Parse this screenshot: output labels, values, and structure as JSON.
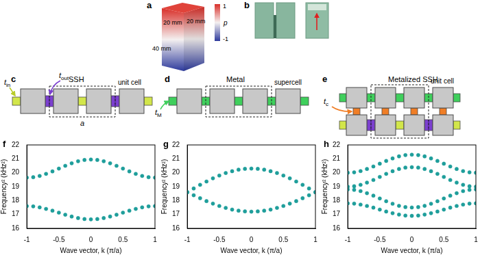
{
  "panels": {
    "a": {
      "label": "a",
      "dimensions": [
        "20 mm",
        "20 mm",
        "40 mm"
      ],
      "colorbar": {
        "label": "p",
        "range": [
          -1,
          1
        ],
        "ticks": [
          1,
          -1
        ]
      }
    },
    "b": {
      "label": "b"
    },
    "c": {
      "label": "c",
      "title": "SSH",
      "couplings": [
        {
          "symbol": "t",
          "subscript": "in"
        },
        {
          "symbol": "t",
          "subscript": "out"
        }
      ],
      "box_label": "unit cell",
      "lattice_constant": "a"
    },
    "d": {
      "label": "d",
      "title": "Metal",
      "couplings": [
        {
          "symbol": "t",
          "subscript": "M"
        }
      ],
      "box_label": "supercell"
    },
    "e": {
      "label": "e",
      "title": "Metalized SSH",
      "couplings": [
        {
          "symbol": "t",
          "subscript": "c"
        }
      ],
      "box_label": "unit cell"
    }
  },
  "chart_data": [
    {
      "panel": "f",
      "type": "scatter",
      "color": "#1f9e9b",
      "marker": "circle",
      "grid": false,
      "xlabel": "Wave vector, k (π/a)",
      "ylabel": "Frequency² (kHz²)",
      "xlim": [
        -1,
        1
      ],
      "xticks": [
        -1,
        -0.5,
        0,
        0.5,
        1
      ],
      "ylim": [
        16,
        22
      ],
      "yticks": [
        16,
        17,
        18,
        19,
        20,
        21,
        22
      ],
      "x": [
        -1,
        -0.9,
        -0.8,
        -0.7,
        -0.6,
        -0.5,
        -0.4,
        -0.3,
        -0.2,
        -0.1,
        0,
        0.1,
        0.2,
        0.3,
        0.4,
        0.5,
        0.6,
        0.7,
        0.8,
        0.9,
        1
      ],
      "series": [
        {
          "values": [
            17.6,
            17.58,
            17.51,
            17.4,
            17.27,
            17.13,
            16.98,
            16.85,
            16.74,
            16.67,
            16.65,
            16.67,
            16.74,
            16.85,
            16.98,
            17.13,
            17.27,
            17.4,
            17.51,
            17.58,
            17.6
          ]
        },
        {
          "values": [
            19.65,
            19.68,
            19.77,
            19.92,
            20.1,
            20.3,
            20.5,
            20.68,
            20.83,
            20.92,
            20.95,
            20.92,
            20.83,
            20.68,
            20.5,
            20.3,
            20.1,
            19.92,
            19.77,
            19.68,
            19.65
          ]
        }
      ]
    },
    {
      "panel": "g",
      "type": "scatter",
      "color": "#1f9e9b",
      "marker": "circle",
      "grid": false,
      "xlabel": "Wave vector, k (π/a)",
      "ylabel": "Frequency² (kHz²)",
      "xlim": [
        -1,
        1
      ],
      "xticks": [
        -1,
        -0.5,
        0,
        0.5,
        1
      ],
      "ylim": [
        16,
        22
      ],
      "yticks": [
        16,
        17,
        18,
        19,
        20,
        21,
        22
      ],
      "x": [
        -1,
        -0.9,
        -0.8,
        -0.7,
        -0.6,
        -0.5,
        -0.4,
        -0.3,
        -0.2,
        -0.1,
        0,
        0.1,
        0.2,
        0.3,
        0.4,
        0.5,
        0.6,
        0.7,
        0.8,
        0.9,
        1
      ],
      "series": [
        {
          "values": [
            18.6,
            18.38,
            18.17,
            17.96,
            17.78,
            17.61,
            17.47,
            17.35,
            17.27,
            17.22,
            17.2,
            17.22,
            17.27,
            17.35,
            17.47,
            17.61,
            17.78,
            17.96,
            18.17,
            18.38,
            18.6
          ]
        },
        {
          "values": [
            18.6,
            18.87,
            19.13,
            19.37,
            19.6,
            19.8,
            19.98,
            20.11,
            20.22,
            20.28,
            20.3,
            20.28,
            20.22,
            20.11,
            19.98,
            19.8,
            19.6,
            19.37,
            19.13,
            18.87,
            18.6
          ]
        }
      ]
    },
    {
      "panel": "h",
      "type": "scatter",
      "color": "#1f9e9b",
      "marker": "circle",
      "grid": false,
      "xlabel": "Wave vector, k (π/a)",
      "ylabel": "Frequency² (kHz²)",
      "xlim": [
        -1,
        1
      ],
      "xticks": [
        -1,
        -0.5,
        0,
        0.5,
        1
      ],
      "ylim": [
        16,
        22
      ],
      "yticks": [
        16,
        17,
        18,
        19,
        20,
        21,
        22
      ],
      "x": [
        -1,
        -0.9,
        -0.8,
        -0.7,
        -0.6,
        -0.5,
        -0.4,
        -0.3,
        -0.2,
        -0.1,
        0,
        0.1,
        0.2,
        0.3,
        0.4,
        0.5,
        0.6,
        0.7,
        0.8,
        0.9,
        1
      ],
      "series": [
        {
          "values": [
            17.8,
            17.78,
            17.71,
            17.61,
            17.49,
            17.35,
            17.21,
            17.09,
            16.99,
            16.92,
            16.9,
            16.92,
            16.99,
            17.09,
            17.21,
            17.35,
            17.49,
            17.61,
            17.71,
            17.78,
            17.8
          ]
        },
        {
          "values": [
            18.8,
            18.77,
            18.68,
            18.53,
            18.35,
            18.15,
            17.95,
            17.77,
            17.62,
            17.53,
            17.5,
            17.53,
            17.62,
            17.77,
            17.95,
            18.15,
            18.35,
            18.53,
            18.68,
            18.77,
            18.8
          ]
        },
        {
          "values": [
            19.0,
            19.03,
            19.13,
            19.29,
            19.48,
            19.7,
            19.92,
            20.11,
            20.27,
            20.37,
            20.4,
            20.37,
            20.27,
            20.11,
            19.92,
            19.7,
            19.48,
            19.29,
            19.13,
            19.03,
            19.0
          ]
        },
        {
          "values": [
            20.0,
            20.03,
            20.12,
            20.27,
            20.45,
            20.65,
            20.85,
            21.03,
            21.18,
            21.27,
            21.3,
            21.27,
            21.18,
            21.03,
            20.85,
            20.65,
            20.45,
            20.27,
            20.12,
            20.03,
            20.0
          ]
        }
      ]
    }
  ]
}
